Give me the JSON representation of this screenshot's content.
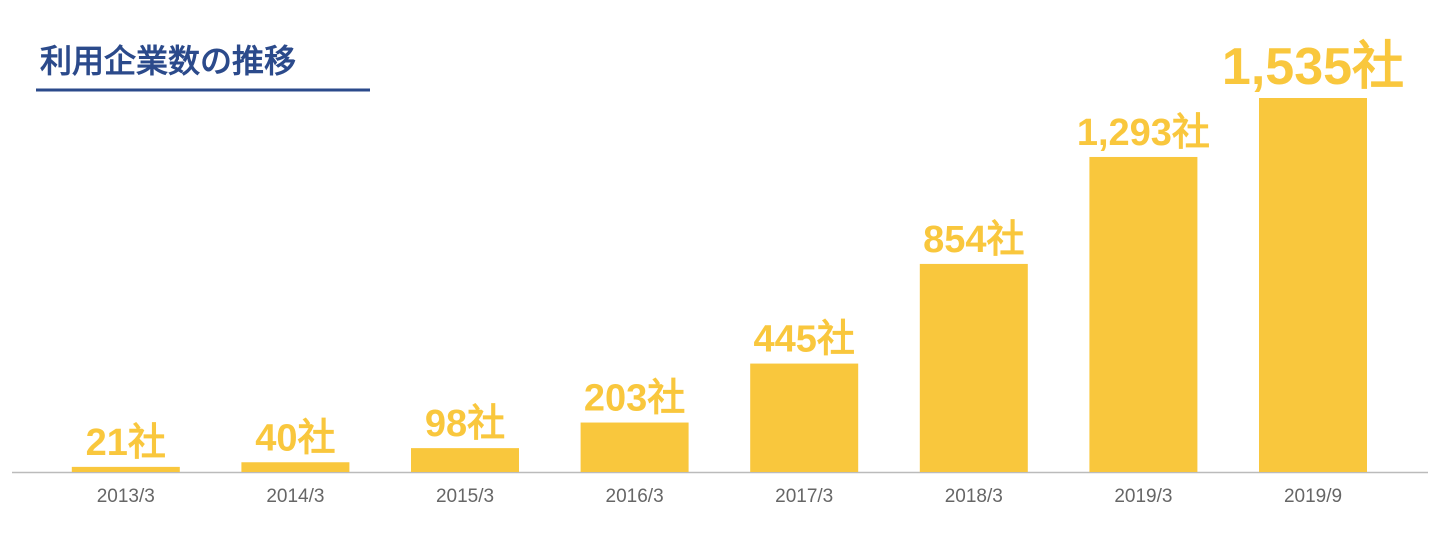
{
  "chart_data": {
    "type": "bar",
    "title": "利用企業数の推移",
    "categories": [
      "2013/3",
      "2014/3",
      "2015/3",
      "2016/3",
      "2017/3",
      "2018/3",
      "2019/3",
      "2019/9"
    ],
    "values": [
      21,
      40,
      98,
      203,
      445,
      854,
      1293,
      1535
    ],
    "value_labels": [
      "21社",
      "40社",
      "98社",
      "203社",
      "445社",
      "854社",
      "1,293社",
      "1,535社"
    ],
    "color": "#f9c73d"
  }
}
